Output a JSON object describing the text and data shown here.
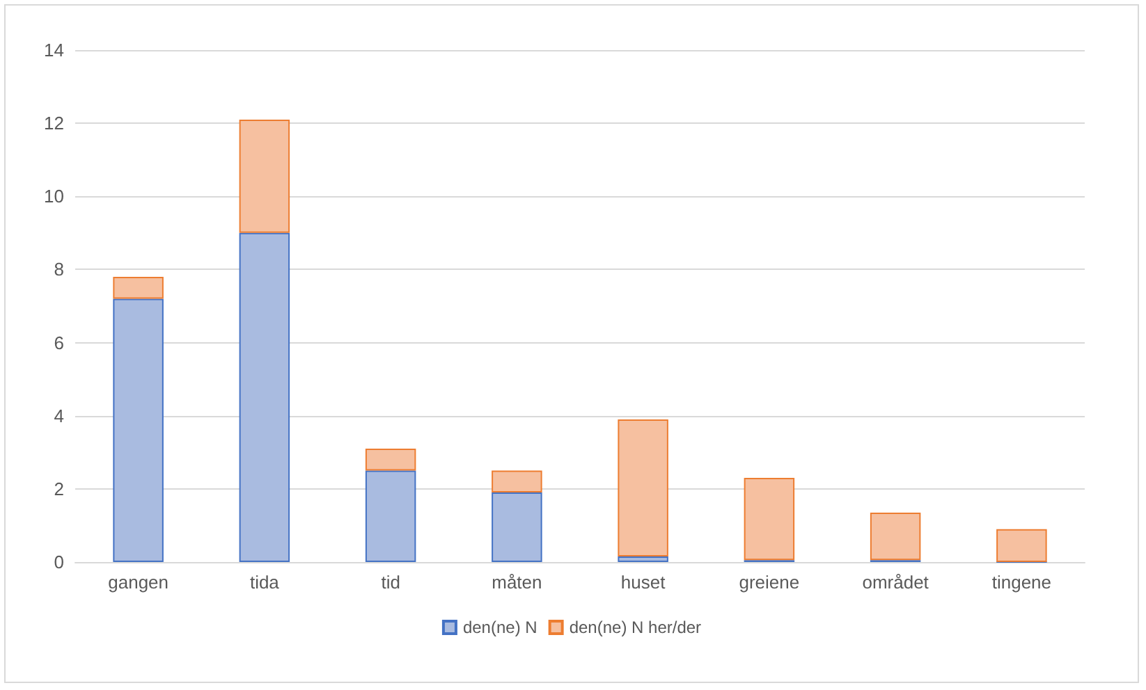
{
  "chart_data": {
    "type": "bar",
    "stacked": true,
    "categories": [
      "gangen",
      "tida",
      "tid",
      "måten",
      "huset",
      "greiene",
      "området",
      "tingene"
    ],
    "series": [
      {
        "name": "den(ne) N",
        "color": "#a9bbe0",
        "values": [
          7.2,
          9.0,
          2.5,
          1.9,
          0.15,
          0.05,
          0.05,
          0
        ]
      },
      {
        "name": "den(ne) N her/der",
        "color": "#f6c0a0",
        "values": [
          0.6,
          3.1,
          0.6,
          0.6,
          3.75,
          2.25,
          1.3,
          0.9
        ]
      }
    ],
    "ylim": [
      0,
      14
    ],
    "yticks": [
      0,
      2,
      4,
      6,
      8,
      10,
      12,
      14
    ],
    "grid": "y",
    "legend": "bottom"
  }
}
